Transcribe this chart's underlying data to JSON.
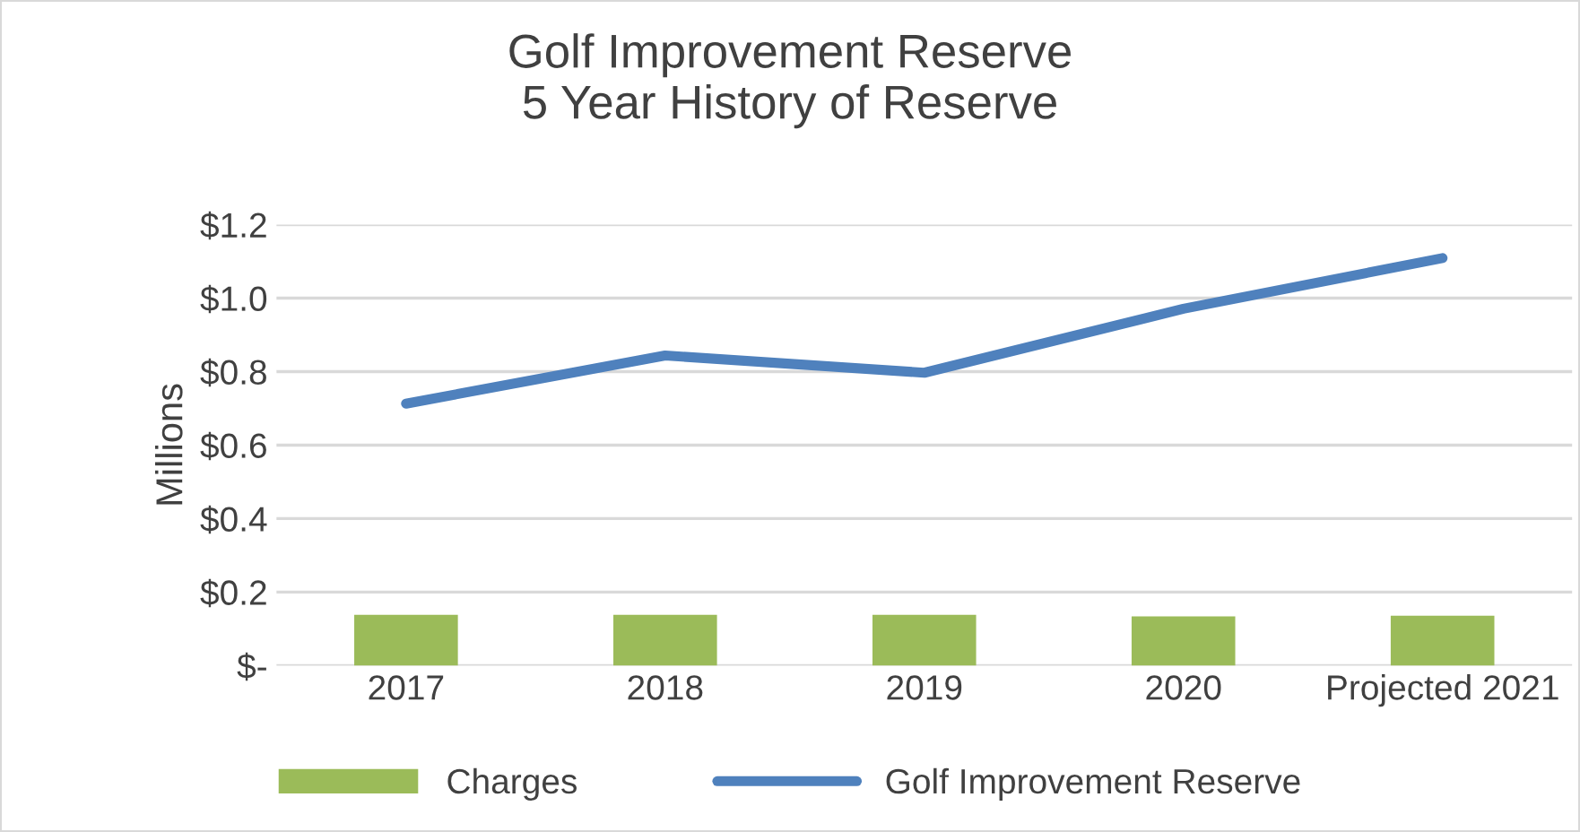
{
  "chart_data": {
    "type": "bar",
    "title": "Golf Improvement Reserve\n5 Year History of Reserve",
    "ylabel": "Millions",
    "categories": [
      "2017",
      "2018",
      "2019",
      "2020",
      "Projected 2021"
    ],
    "series": [
      {
        "name": "Charges",
        "color": "#9bbb59",
        "values": [
          0.138,
          0.138,
          0.138,
          0.134,
          0.136
        ]
      },
      {
        "name": "Golf Improvement Reserve",
        "type": "line",
        "color": "#4f81bd",
        "values": [
          0.713,
          0.844,
          0.797,
          0.971,
          1.109
        ]
      }
    ],
    "ylim": [
      0,
      1.2
    ],
    "yticks": [
      {
        "value": 0,
        "label": "$-"
      },
      {
        "value": 0.2,
        "label": "$0.2"
      },
      {
        "value": 0.4,
        "label": "$0.4"
      },
      {
        "value": 0.6,
        "label": "$0.6"
      },
      {
        "value": 0.8,
        "label": "$0.8"
      },
      {
        "value": 1.0,
        "label": "$1.0"
      },
      {
        "value": 1.2,
        "label": "$1.2"
      }
    ],
    "grid": "y",
    "legend": "bottom",
    "marker": "none",
    "line_style": "solid"
  }
}
